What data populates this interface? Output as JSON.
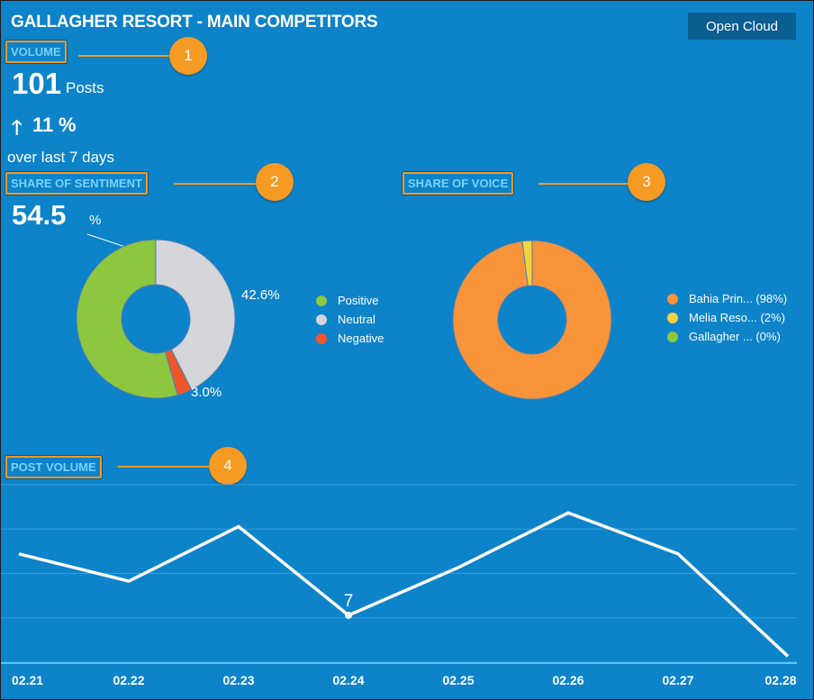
{
  "header": {
    "title": "GALLAGHER RESORT - MAIN COMPETITORS",
    "open_cloud_label": "Open Cloud"
  },
  "volume": {
    "label": "VOLUME",
    "callout": "1",
    "count": "101",
    "unit": "Posts",
    "change_arrow": "🡑",
    "change_value": "11",
    "change_unit": "%",
    "period": "over last 7 days"
  },
  "sentiment": {
    "label": "SHARE OF SENTIMENT",
    "callout": "2",
    "headline_value": "54.5",
    "headline_unit": "%",
    "neutral_label": "42.6%",
    "negative_label": "3.0%",
    "legend": [
      {
        "label": "Positive",
        "color": "#8dc63f"
      },
      {
        "label": "Neutral",
        "color": "#d4d6d9"
      },
      {
        "label": "Negative",
        "color": "#f0562a"
      }
    ],
    "slices": [
      {
        "name": "Positive",
        "value": 54.5,
        "color": "#8dc63f"
      },
      {
        "name": "Neutral",
        "value": 42.6,
        "color": "#d4d6d9"
      },
      {
        "name": "Negative",
        "value": 3.0,
        "color": "#f0562a"
      }
    ]
  },
  "voice": {
    "label": "SHARE OF VOICE",
    "callout": "3",
    "legend": [
      {
        "label": "Bahia Prin... (98%)",
        "color": "#f7943a"
      },
      {
        "label": "Melia Reso... (2%)",
        "color": "#f5d33f"
      },
      {
        "label": "Gallagher ... (0%)",
        "color": "#8dc63f"
      }
    ],
    "slices": [
      {
        "name": "Bahia Prin...",
        "value": 98,
        "color": "#f7943a"
      },
      {
        "name": "Melia Reso...",
        "value": 2,
        "color": "#f5d33f"
      },
      {
        "name": "Gallagher ...",
        "value": 0,
        "color": "#8dc63f"
      }
    ]
  },
  "post_volume": {
    "label": "POST VOLUME",
    "callout": "4"
  },
  "chart_data": {
    "type": "line",
    "categories": [
      "02.21",
      "02.22",
      "02.23",
      "02.24",
      "02.25",
      "02.26",
      "02.27",
      "02.28"
    ],
    "values": [
      16,
      12,
      20,
      7,
      14,
      22,
      16,
      1
    ],
    "annotation": {
      "index": 3,
      "label": "7"
    },
    "ylim": [
      0,
      26
    ],
    "grid": true,
    "series_color": "#ffffff"
  }
}
